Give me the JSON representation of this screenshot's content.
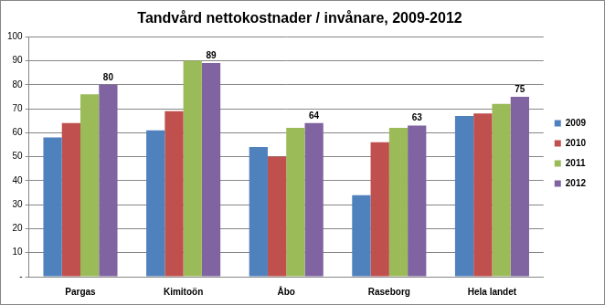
{
  "chart_data": {
    "type": "bar",
    "title": "Tandvård nettokostnader / invånare, 2009-2012",
    "categories": [
      "Pargas",
      "Kimitoön",
      "Åbo",
      "Raseborg",
      "Hela landet"
    ],
    "series": [
      {
        "name": "2009",
        "color": "#4f81bd",
        "values": [
          58,
          61,
          54,
          34,
          67
        ]
      },
      {
        "name": "2010",
        "color": "#c0504d",
        "values": [
          64,
          69,
          50,
          56,
          68
        ]
      },
      {
        "name": "2011",
        "color": "#9bbb59",
        "values": [
          76,
          90,
          62,
          62,
          72
        ]
      },
      {
        "name": "2012",
        "color": "#8064a2",
        "values": [
          80,
          89,
          64,
          63,
          75
        ],
        "data_labels": true
      }
    ],
    "ylim": [
      0,
      100
    ],
    "yticks": [
      {
        "value": 0,
        "label": "-"
      },
      10,
      20,
      30,
      40,
      50,
      60,
      70,
      80,
      90,
      100
    ],
    "grid": true,
    "legend": "right"
  }
}
